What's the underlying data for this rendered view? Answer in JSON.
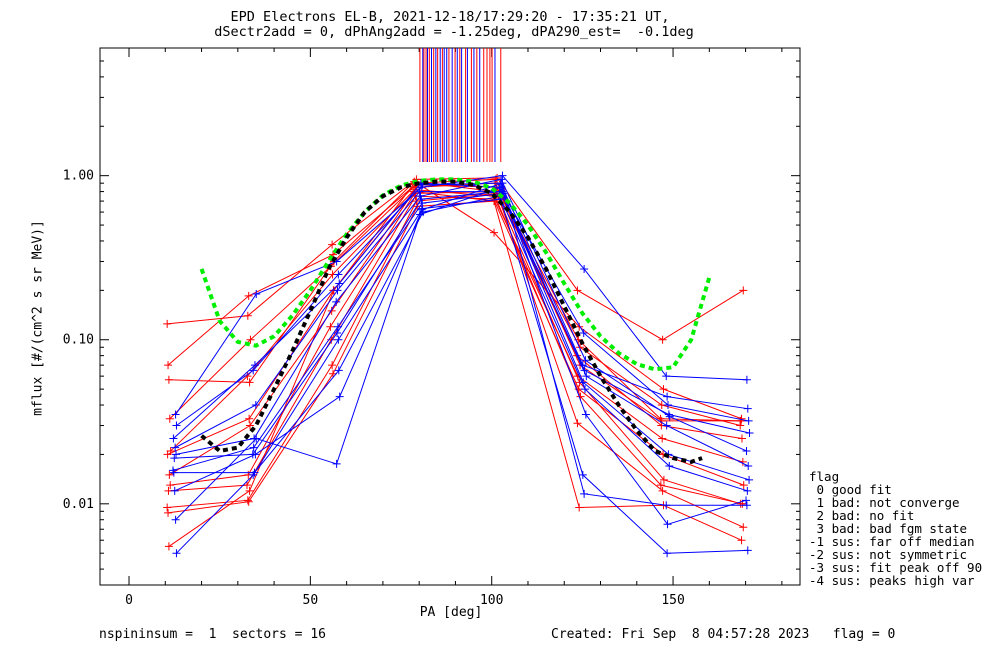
{
  "header": {
    "title_line1": "EPD Electrons EL-B, 2021-12-18/17:29:20 - 17:35:21 UT,",
    "title_line2": "dSectr2add = 0, dPhAng2add = -1.25deg, dPA290_est=  -0.1deg"
  },
  "footer": {
    "left": "nspininsum =  1  sectors = 16",
    "right": "Created: Fri Sep  8 04:57:28 2023   flag = 0"
  },
  "legend": {
    "title": "flag",
    "items": [
      " 0 good fit",
      " 1 bad: not converge",
      " 2 bad: no fit",
      " 3 bad: bad fgm state",
      "-1 sus: far off median",
      "-2 sus: not symmetric",
      "-3 sus: fit peak off 90",
      "-4 sus: peaks high var"
    ]
  },
  "colors": {
    "red": "#ff0000",
    "blue": "#0000ff",
    "green": "#00ee00",
    "black": "#000000"
  },
  "chart_data": {
    "type": "line",
    "xlabel": "PA [deg]",
    "ylabel": "mflux [#/(cm^2 s sr MeV)]",
    "xlim": [
      -8,
      185
    ],
    "ylim": [
      0.0032,
      6.0
    ],
    "yscale": "log",
    "xticks": [
      0,
      50,
      100,
      150
    ],
    "yticks": [
      0.01,
      0.1,
      1.0
    ],
    "ytick_labels": [
      "0.01",
      "0.10",
      "1.00"
    ],
    "pa_bins": [
      11,
      33,
      56,
      79,
      101,
      124,
      147,
      169
    ],
    "series": [
      {
        "color": "red",
        "values": [
          0.125,
          0.14,
          0.38,
          0.95,
          0.97,
          0.2,
          0.1,
          0.2
        ]
      },
      {
        "color": "red",
        "values": [
          0.07,
          0.185,
          0.33,
          0.9,
          0.45,
          0.12,
          0.05,
          0.033
        ]
      },
      {
        "color": "red",
        "values": [
          0.057,
          0.055,
          0.3,
          0.92,
          0.8,
          0.09,
          0.04,
          0.03
        ]
      },
      {
        "color": "red",
        "values": [
          0.033,
          0.1,
          0.28,
          0.88,
          0.85,
          0.1,
          0.033,
          0.032
        ]
      },
      {
        "color": "red",
        "values": [
          0.021,
          0.06,
          0.25,
          0.85,
          0.9,
          0.08,
          0.03,
          0.025
        ]
      },
      {
        "color": "red",
        "values": [
          0.02,
          0.033,
          0.2,
          0.82,
          0.75,
          0.06,
          0.025,
          0.018
        ]
      },
      {
        "color": "red",
        "values": [
          0.015,
          0.03,
          0.15,
          0.8,
          0.7,
          0.05,
          0.02,
          0.013
        ]
      },
      {
        "color": "red",
        "values": [
          0.013,
          0.015,
          0.12,
          0.78,
          0.8,
          0.055,
          0.014,
          0.01
        ]
      },
      {
        "color": "red",
        "values": [
          0.012,
          0.013,
          0.1,
          0.75,
          0.72,
          0.045,
          0.013,
          0.01
        ]
      },
      {
        "color": "red",
        "values": [
          0.0095,
          0.0105,
          0.07,
          0.7,
          0.78,
          0.031,
          0.012,
          0.0072
        ]
      },
      {
        "color": "red",
        "values": [
          0.0088,
          0.0103,
          0.062,
          0.65,
          0.7,
          0.0095,
          0.0098,
          0.006
        ]
      },
      {
        "color": "red",
        "values": [
          0.0055,
          0.012,
          0.2,
          0.9,
          0.95,
          0.07,
          0.032,
          0.032
        ]
      },
      {
        "color": "blue",
        "values": [
          0.035,
          0.19,
          0.3,
          0.85,
          1.0,
          0.27,
          0.06,
          0.057
        ]
      },
      {
        "color": "blue",
        "values": [
          0.03,
          0.065,
          0.25,
          0.88,
          0.9,
          0.07,
          0.045,
          0.038
        ]
      },
      {
        "color": "blue",
        "values": [
          0.025,
          0.07,
          0.22,
          0.9,
          0.85,
          0.11,
          0.04,
          0.032
        ]
      },
      {
        "color": "blue",
        "values": [
          0.022,
          0.04,
          0.2,
          0.8,
          0.8,
          0.065,
          0.035,
          0.027
        ]
      },
      {
        "color": "blue",
        "values": [
          0.02,
          0.025,
          0.17,
          0.75,
          0.95,
          0.075,
          0.034,
          0.021
        ]
      },
      {
        "color": "blue",
        "values": [
          0.019,
          0.02,
          0.11,
          0.72,
          0.8,
          0.06,
          0.03,
          0.017
        ]
      },
      {
        "color": "blue",
        "values": [
          0.016,
          0.022,
          0.12,
          0.68,
          0.78,
          0.055,
          0.02,
          0.014
        ]
      },
      {
        "color": "blue",
        "values": [
          0.0155,
          0.0155,
          0.065,
          0.6,
          0.75,
          0.05,
          0.017,
          0.012
        ]
      },
      {
        "color": "blue",
        "values": [
          0.012,
          0.02,
          0.045,
          0.58,
          0.85,
          0.035,
          0.0075,
          0.0105
        ]
      },
      {
        "color": "blue",
        "values": [
          0.008,
          0.025,
          0.0175,
          0.62,
          0.9,
          0.0115,
          0.0098,
          0.0098
        ]
      },
      {
        "color": "blue",
        "values": [
          0.005,
          0.015,
          0.1,
          0.63,
          0.72,
          0.015,
          0.005,
          0.0052
        ]
      }
    ],
    "fits": [
      {
        "color": "green",
        "style": "dashed-thick",
        "x": [
          20,
          25,
          30,
          35,
          40,
          45,
          50,
          55,
          60,
          65,
          70,
          75,
          80,
          85,
          90,
          95,
          100,
          105,
          110,
          115,
          120,
          125,
          130,
          135,
          140,
          145,
          150,
          155,
          160
        ],
        "y": [
          0.27,
          0.13,
          0.097,
          0.092,
          0.105,
          0.14,
          0.2,
          0.3,
          0.44,
          0.6,
          0.76,
          0.87,
          0.93,
          0.95,
          0.95,
          0.92,
          0.84,
          0.68,
          0.5,
          0.34,
          0.22,
          0.145,
          0.105,
          0.083,
          0.071,
          0.066,
          0.068,
          0.1,
          0.24
        ]
      },
      {
        "color": "black",
        "style": "dashed-thick",
        "x": [
          20,
          25,
          30,
          35,
          40,
          45,
          50,
          55,
          60,
          65,
          70,
          75,
          80,
          85,
          90,
          95,
          100,
          105,
          110,
          115,
          120,
          125,
          130,
          135,
          140,
          145,
          150,
          155,
          158
        ],
        "y": [
          0.026,
          0.021,
          0.022,
          0.03,
          0.05,
          0.085,
          0.15,
          0.27,
          0.42,
          0.6,
          0.75,
          0.85,
          0.9,
          0.92,
          0.92,
          0.88,
          0.78,
          0.6,
          0.42,
          0.27,
          0.16,
          0.095,
          0.06,
          0.04,
          0.028,
          0.021,
          0.019,
          0.018,
          0.019
        ]
      }
    ],
    "peak_markers": [
      {
        "color": "red",
        "x": [
          80.2,
          81.3,
          81.9,
          82.8,
          84.0,
          85.1,
          86.4,
          88.2,
          89.9,
          91.2,
          92.8,
          94.4,
          95.9,
          97.8,
          98.7,
          99.5,
          100.1,
          102.5
        ]
      },
      {
        "color": "blue",
        "x": [
          81.0,
          82.3,
          83.4,
          84.6,
          85.8,
          86.9,
          87.6,
          89.1,
          90.5,
          91.7,
          93.3,
          95.1,
          96.7,
          100.9
        ]
      }
    ]
  }
}
